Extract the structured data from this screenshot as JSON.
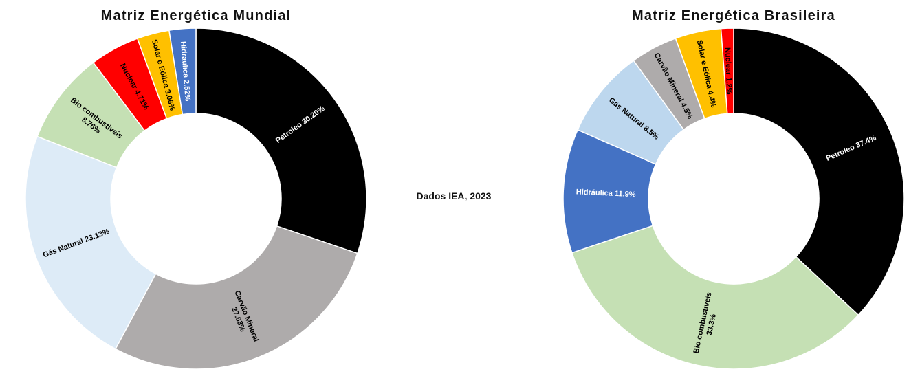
{
  "source_note": "Dados IEA, 2023",
  "chart_data": [
    {
      "type": "pie",
      "title": "Matriz Energética Mundial",
      "categories": [
        "Petroleo",
        "Carvão Mineral",
        "Gás Natural",
        "Bio combustiveis",
        "Nuclear",
        "Solar e Eólica",
        "Hidráulica"
      ],
      "values": [
        30.2,
        27.63,
        23.13,
        8.76,
        4.71,
        3.06,
        2.52
      ],
      "labels": [
        [
          "Petroleo 30.20%"
        ],
        [
          "Carvão Mineral",
          "27.63%"
        ],
        [
          "Gás Natural 23.13%"
        ],
        [
          "Bio combustiveis",
          "8.76%"
        ],
        [
          "Nuclear 4.71%"
        ],
        [
          "Solar e Eólica 3.06%"
        ],
        [
          "Hidraulica 2.52%"
        ]
      ],
      "colors": [
        "#000000",
        "#AEABAB",
        "#DDEBF7",
        "#C5E0B4",
        "#FF0000",
        "#FFC000",
        "#4472C4"
      ],
      "label_colors": [
        "#FFFFFF",
        "#000000",
        "#000000",
        "#000000",
        "#000000",
        "#000000",
        "#FFFFFF"
      ],
      "legend": "none"
    },
    {
      "type": "pie",
      "title": "Matriz Energética Brasileira",
      "categories": [
        "Petroleo",
        "Bio combustiveis",
        "Hidráulica",
        "Gás Natural",
        "Carvão Mineral",
        "Solar e Eólica",
        "Nuclear"
      ],
      "values": [
        37.4,
        33.3,
        11.9,
        8.5,
        4.5,
        4.4,
        1.2
      ],
      "labels": [
        [
          "Petroleo 37.4%"
        ],
        [
          "Bio combustiveis",
          "33.3%"
        ],
        [
          "Hidráulica 11.9%"
        ],
        [
          "Gás Natural 8.5%"
        ],
        [
          "Carvão Mineral 4.5%"
        ],
        [
          "Solar e Eólica 4.4%"
        ],
        [
          "Nuclear 1.2%"
        ]
      ],
      "colors": [
        "#000000",
        "#C5E0B4",
        "#4472C4",
        "#BDD7EE",
        "#AEABAB",
        "#FFC000",
        "#FF0000"
      ],
      "label_colors": [
        "#FFFFFF",
        "#000000",
        "#FFFFFF",
        "#000000",
        "#000000",
        "#000000",
        "#000000"
      ],
      "legend": "none"
    }
  ]
}
